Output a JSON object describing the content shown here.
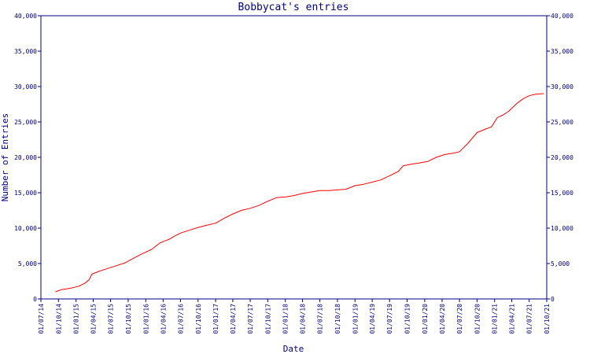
{
  "chart_data": {
    "type": "line",
    "title": "Bobbycat's entries",
    "xlabel": "Date",
    "ylabel": "Number of Entries",
    "ylim": [
      0,
      40000
    ],
    "xlim": [
      "2014-07-01",
      "2021-10-01"
    ],
    "grid": false,
    "legend": "none",
    "colors": {
      "axes": "#000080",
      "text": "#000080",
      "line": "#ff0000",
      "background": "#ffffff"
    },
    "y_ticks": [
      0,
      5000,
      10000,
      15000,
      20000,
      25000,
      30000,
      35000,
      40000
    ],
    "y_tick_labels": [
      "0",
      "5,000",
      "10,000",
      "15,000",
      "20,000",
      "25,000",
      "30,000",
      "35,000",
      "40,000"
    ],
    "x_ticks": [
      "2014-07-01",
      "2014-10-01",
      "2015-01-01",
      "2015-04-01",
      "2015-07-01",
      "2015-10-01",
      "2016-01-01",
      "2016-04-01",
      "2016-07-01",
      "2016-10-01",
      "2017-01-01",
      "2017-04-01",
      "2017-07-01",
      "2017-10-01",
      "2018-01-01",
      "2018-04-01",
      "2018-07-01",
      "2018-10-01",
      "2019-01-01",
      "2019-04-01",
      "2019-07-01",
      "2019-10-01",
      "2020-01-01",
      "2020-04-01",
      "2020-07-01",
      "2020-10-01",
      "2021-01-01",
      "2021-04-01",
      "2021-07-01",
      "2021-10-01"
    ],
    "x_tick_labels": [
      "01/07/14",
      "01/10/14",
      "01/01/15",
      "01/04/15",
      "01/07/15",
      "01/10/15",
      "01/01/16",
      "01/04/16",
      "01/07/16",
      "01/10/16",
      "01/01/17",
      "01/04/17",
      "01/07/17",
      "01/10/17",
      "01/01/18",
      "01/04/18",
      "01/07/18",
      "01/10/18",
      "01/01/19",
      "01/04/19",
      "01/07/19",
      "01/10/19",
      "01/01/20",
      "01/04/20",
      "01/07/20",
      "01/10/20",
      "01/01/21",
      "01/04/21",
      "01/07/21",
      "01/10/21"
    ],
    "series": [
      {
        "x": [
          "2014-09-15",
          "2014-10-15",
          "2014-12-01",
          "2015-01-15",
          "2015-02-15",
          "2015-03-10",
          "2015-03-25",
          "2015-05-01",
          "2015-06-15",
          "2015-08-01",
          "2015-09-15",
          "2015-11-01",
          "2015-12-15",
          "2016-02-01",
          "2016-03-15",
          "2016-04-10",
          "2016-05-01",
          "2016-06-01",
          "2016-07-01",
          "2016-08-15",
          "2016-10-01",
          "2016-11-15",
          "2017-01-01",
          "2017-02-15",
          "2017-04-01",
          "2017-05-15",
          "2017-07-01",
          "2017-08-15",
          "2017-10-01",
          "2017-11-15",
          "2018-01-01",
          "2018-02-15",
          "2018-04-01",
          "2018-05-15",
          "2018-07-01",
          "2018-08-15",
          "2018-10-01",
          "2018-11-15",
          "2019-01-01",
          "2019-02-15",
          "2019-04-01",
          "2019-05-15",
          "2019-07-01",
          "2019-08-15",
          "2019-09-10",
          "2019-10-15",
          "2019-12-01",
          "2020-01-15",
          "2020-03-01",
          "2020-04-15",
          "2020-06-01",
          "2020-07-01",
          "2020-08-15",
          "2020-10-01",
          "2020-11-15",
          "2020-12-15",
          "2021-01-15",
          "2021-02-15",
          "2021-03-15",
          "2021-05-01",
          "2021-06-01",
          "2021-07-01",
          "2021-08-01",
          "2021-09-15"
        ],
        "y": [
          1000,
          1300,
          1500,
          1800,
          2200,
          2700,
          3500,
          3900,
          4300,
          4700,
          5100,
          5800,
          6400,
          7000,
          7900,
          8200,
          8400,
          8900,
          9300,
          9700,
          10100,
          10400,
          10700,
          11400,
          12000,
          12500,
          12800,
          13200,
          13800,
          14300,
          14400,
          14600,
          14900,
          15100,
          15300,
          15300,
          15400,
          15500,
          16000,
          16200,
          16500,
          16800,
          17400,
          18000,
          18800,
          19000,
          19200,
          19400,
          20000,
          20400,
          20600,
          20800,
          22000,
          23500,
          24000,
          24300,
          25600,
          26000,
          26500,
          27700,
          28300,
          28700,
          28900,
          29000
        ],
        "color": "#ff0000"
      }
    ]
  }
}
